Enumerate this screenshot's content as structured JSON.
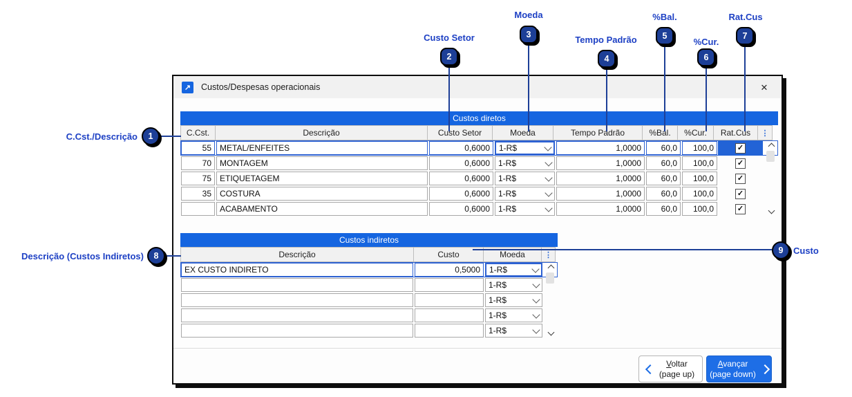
{
  "window": {
    "title": "Custos/Despesas operacionais"
  },
  "icons": {
    "window_glyph": "↗",
    "close_glyph": "✕",
    "menu_glyph": "⋮",
    "check_glyph": "✓"
  },
  "direct_costs": {
    "title": "Custos diretos",
    "columns": [
      "C.Cst.",
      "Descrição",
      "Custo Setor",
      "Moeda",
      "Tempo Padrão",
      "%Bal.",
      "%Cur.",
      "Rat.Cus"
    ],
    "rows": [
      {
        "ccst": "55",
        "descricao": "METAL/ENFEITES",
        "custo_setor": "0,6000",
        "moeda": "1-R$",
        "tempo_padrao": "1,0000",
        "bal": "60,0",
        "cur": "100,0",
        "rat_cus": true,
        "selected": true
      },
      {
        "ccst": "70",
        "descricao": "MONTAGEM",
        "custo_setor": "0,6000",
        "moeda": "1-R$",
        "tempo_padrao": "1,0000",
        "bal": "60,0",
        "cur": "100,0",
        "rat_cus": true,
        "selected": false
      },
      {
        "ccst": "75",
        "descricao": "ETIQUETAGEM",
        "custo_setor": "0,6000",
        "moeda": "1-R$",
        "tempo_padrao": "1,0000",
        "bal": "60,0",
        "cur": "100,0",
        "rat_cus": true,
        "selected": false
      },
      {
        "ccst": "35",
        "descricao": "COSTURA",
        "custo_setor": "0,6000",
        "moeda": "1-R$",
        "tempo_padrao": "1,0000",
        "bal": "60,0",
        "cur": "100,0",
        "rat_cus": true,
        "selected": false
      },
      {
        "ccst": "",
        "descricao": "ACABAMENTO",
        "custo_setor": "0,6000",
        "moeda": "1-R$",
        "tempo_padrao": "1,0000",
        "bal": "60,0",
        "cur": "100,0",
        "rat_cus": true,
        "selected": false
      }
    ]
  },
  "indirect_costs": {
    "title": "Custos indiretos",
    "columns": [
      "Descrição",
      "Custo",
      "Moeda"
    ],
    "rows": [
      {
        "descricao": "EX CUSTO INDIRETO",
        "custo": "0,5000",
        "moeda": "1-R$",
        "selected": true
      },
      {
        "descricao": "",
        "custo": "",
        "moeda": "1-R$",
        "selected": false
      },
      {
        "descricao": "",
        "custo": "",
        "moeda": "1-R$",
        "selected": false
      },
      {
        "descricao": "",
        "custo": "",
        "moeda": "1-R$",
        "selected": false
      },
      {
        "descricao": "",
        "custo": "",
        "moeda": "1-R$",
        "selected": false
      }
    ]
  },
  "buttons": {
    "back_label": "Voltar",
    "back_sub": "(page up)",
    "next_label": "Avançar",
    "next_sub": "(page down)"
  },
  "callouts": [
    {
      "n": "1",
      "label": "C.Cst./Descrição"
    },
    {
      "n": "2",
      "label": "Custo Setor"
    },
    {
      "n": "3",
      "label": "Moeda"
    },
    {
      "n": "4",
      "label": "Tempo Padrão"
    },
    {
      "n": "5",
      "label": "%Bal."
    },
    {
      "n": "6",
      "label": "%Cur."
    },
    {
      "n": "7",
      "label": "Rat.Cus"
    },
    {
      "n": "8",
      "label": "Descrição (Custos Indiretos)"
    },
    {
      "n": "9",
      "label": "Custo"
    }
  ],
  "colors": {
    "header_blue": "#1565E0",
    "button_blue": "#1E6EE6",
    "selection_blue": "#2263D6",
    "callout_badge_blue": "#1D3F97",
    "callout_label_blue": "#1D40C4"
  }
}
